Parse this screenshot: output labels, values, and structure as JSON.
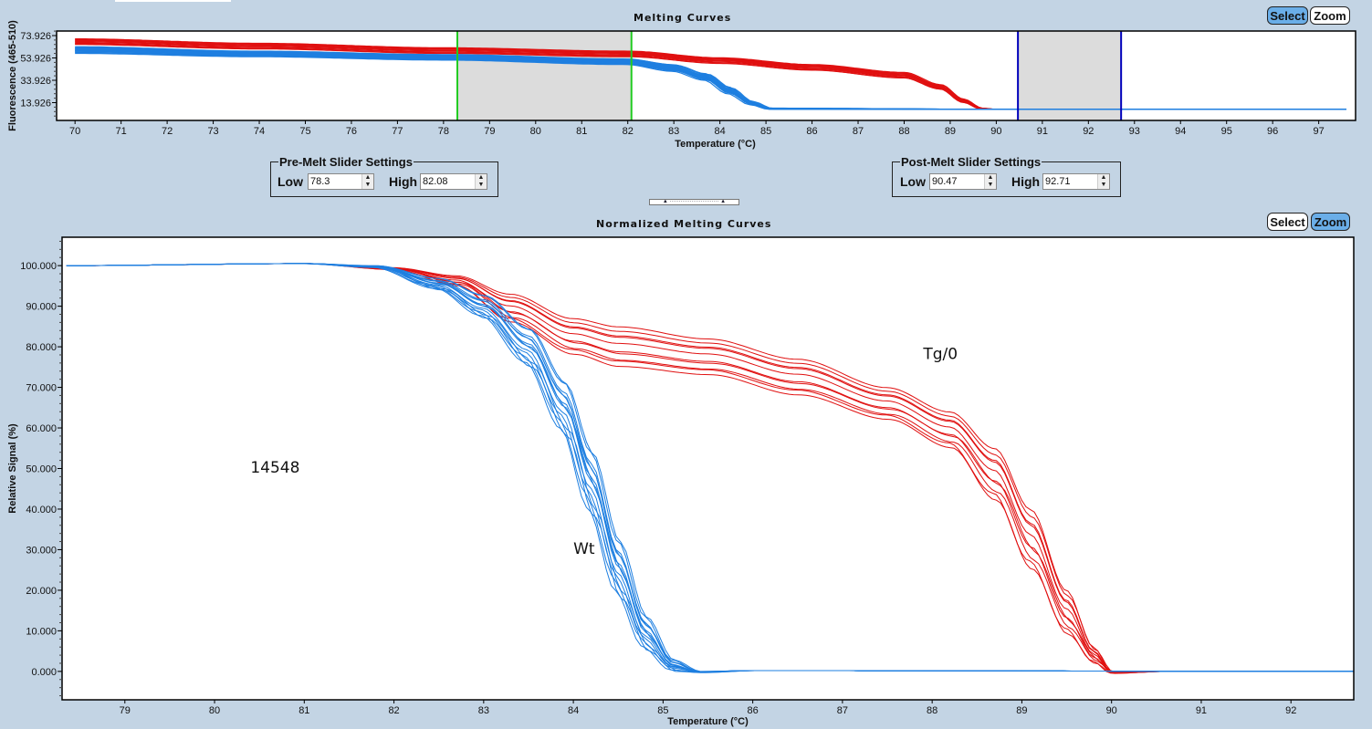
{
  "top_chart": {
    "title": "Melting Curves",
    "buttons": {
      "select": "Select",
      "zoom": "Zoom",
      "active": "select"
    }
  },
  "pre_melt": {
    "legend": "Pre-Melt Slider Settings",
    "low_label": "Low",
    "low_value": "78.3",
    "high_label": "High",
    "high_value": "82.08"
  },
  "post_melt": {
    "legend": "Post-Melt Slider Settings",
    "low_label": "Low",
    "low_value": "90.47",
    "high_label": "High",
    "high_value": "92.71"
  },
  "splitter": {
    "glyph": "▲ ··························· ▲"
  },
  "bottom_chart": {
    "title": "Normalized Melting Curves",
    "buttons": {
      "select": "Select",
      "zoom": "Zoom",
      "active": "zoom"
    }
  },
  "colors": {
    "wt": "#1e7fe0",
    "tg": "#e01010",
    "premelt_cursor": "#22cc22",
    "postmelt_cursor": "#0000bb",
    "shade": "#dcdcdc"
  },
  "chart_data": [
    {
      "type": "line",
      "title": "Melting Curves",
      "xlabel": "Temperature (°C)",
      "ylabel": "Fluorescence (465-510)",
      "xlim": [
        69.6,
        97.8
      ],
      "ylim": [
        -2,
        78
      ],
      "xticks": [
        70,
        71,
        72,
        73,
        74,
        75,
        76,
        77,
        78,
        79,
        80,
        81,
        82,
        83,
        84,
        85,
        86,
        87,
        88,
        89,
        90,
        91,
        92,
        93,
        94,
        95,
        96,
        97
      ],
      "yticks": [
        13.926,
        33.926,
        53.926,
        73.926
      ],
      "ytick_labels": [
        "13.926",
        "33.926",
        "53.926",
        "73.926"
      ],
      "pre_melt_range": [
        78.3,
        82.08
      ],
      "post_melt_range": [
        90.47,
        92.71
      ],
      "series": [
        {
          "name": "Tg/0",
          "color": "#e01010",
          "count": 10,
          "x": [
            70,
            74,
            78,
            82,
            84,
            86,
            88,
            88.8,
            89.3,
            89.7,
            90
          ],
          "y_band": [
            [
              66,
              71
            ],
            [
              62,
              67
            ],
            [
              58,
              63
            ],
            [
              55,
              60
            ],
            [
              49,
              54
            ],
            [
              43,
              48
            ],
            [
              36,
              41
            ],
            [
              26,
              30
            ],
            [
              14,
              17
            ],
            [
              8,
              9
            ],
            [
              8,
              8
            ]
          ]
        },
        {
          "name": "Wt",
          "color": "#1e7fe0",
          "count": 14,
          "x": [
            70,
            74,
            78,
            82,
            83,
            83.7,
            84.2,
            84.7,
            85.1,
            90,
            97.6
          ],
          "y_band": [
            [
              58,
              64
            ],
            [
              55,
              60
            ],
            [
              52,
              57
            ],
            [
              48,
              53
            ],
            [
              42,
              48
            ],
            [
              34,
              40
            ],
            [
              22,
              28
            ],
            [
              12,
              15
            ],
            [
              8,
              9
            ],
            [
              8,
              8
            ],
            [
              8,
              8
            ]
          ]
        }
      ]
    },
    {
      "type": "line",
      "title": "Normalized Melting Curves",
      "xlabel": "Temperature (°C)",
      "ylabel": "Relative Signal (%)",
      "xlim": [
        78.3,
        92.7
      ],
      "ylim": [
        -7,
        107
      ],
      "xticks": [
        79,
        80,
        81,
        82,
        83,
        84,
        85,
        86,
        87,
        88,
        89,
        90,
        91,
        92
      ],
      "yticks": [
        0,
        10,
        20,
        30,
        40,
        50,
        60,
        70,
        80,
        90,
        100
      ],
      "ytick_labels": [
        "0.000",
        "10.000",
        "20.000",
        "30.000",
        "40.000",
        "50.000",
        "60.000",
        "70.000",
        "80.000",
        "90.000",
        "100.000"
      ],
      "annotations": [
        {
          "text": "14548",
          "x": 80.4,
          "y": 49
        },
        {
          "text": "Wt",
          "x": 84.0,
          "y": 29
        },
        {
          "text": "Tg/0",
          "x": 87.9,
          "y": 77
        }
      ],
      "series": [
        {
          "name": "Tg/0",
          "color": "#e01010",
          "count": 10,
          "x": [
            78.35,
            81,
            82,
            82.7,
            83.3,
            84,
            84.5,
            85.5,
            86.5,
            87.5,
            88.2,
            88.7,
            89.1,
            89.5,
            89.8,
            90.0,
            90.6
          ],
          "y_upper": [
            100,
            100.5,
            99.5,
            97.5,
            93,
            87,
            85,
            82,
            77,
            70,
            64,
            55,
            40,
            20,
            6,
            0,
            0
          ],
          "y_lower": [
            100,
            100.5,
            99,
            95,
            86,
            78,
            75,
            73,
            68,
            62,
            55,
            42,
            25,
            9,
            2,
            -0.5,
            0
          ]
        },
        {
          "name": "Wt",
          "color": "#1e7fe0",
          "count": 14,
          "x": [
            78.35,
            81,
            81.8,
            82.5,
            83,
            83.5,
            83.9,
            84.2,
            84.5,
            84.8,
            85.1,
            85.4,
            86,
            92.7
          ],
          "y_upper": [
            100,
            100.5,
            100,
            97,
            93,
            85,
            72,
            55,
            33,
            14,
            3,
            0,
            0.2,
            0
          ],
          "y_lower": [
            100,
            100.5,
            99.5,
            94,
            87,
            75,
            58,
            38,
            18,
            5,
            0,
            -0.3,
            0.2,
            0
          ]
        }
      ]
    }
  ]
}
